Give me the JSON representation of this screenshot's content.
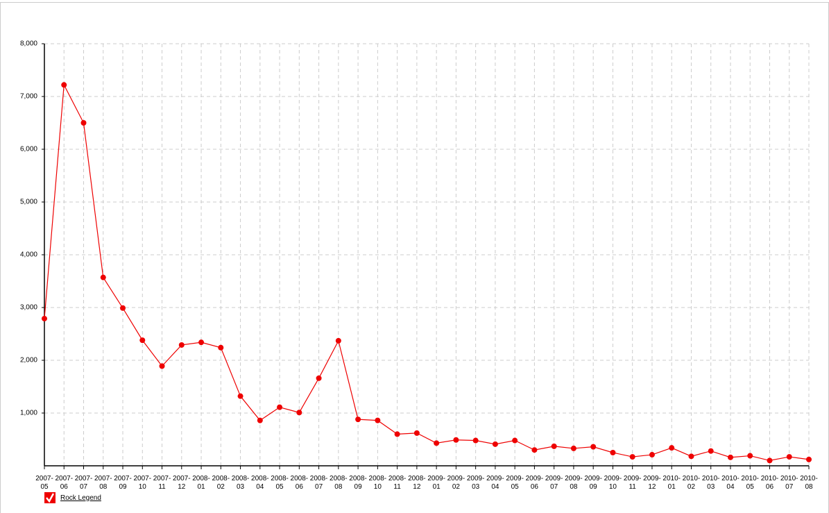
{
  "chart_data": {
    "type": "line",
    "categories": [
      "2007-05",
      "2007-06",
      "2007-07",
      "2007-08",
      "2007-09",
      "2007-10",
      "2007-11",
      "2007-12",
      "2008-01",
      "2008-02",
      "2008-03",
      "2008-04",
      "2008-05",
      "2008-06",
      "2008-07",
      "2008-08",
      "2008-09",
      "2008-10",
      "2008-11",
      "2008-12",
      "2009-01",
      "2009-02",
      "2009-03",
      "2009-04",
      "2009-05",
      "2009-06",
      "2009-07",
      "2009-08",
      "2009-09",
      "2009-10",
      "2009-11",
      "2009-12",
      "2010-01",
      "2010-02",
      "2010-03",
      "2010-04",
      "2010-05",
      "2010-06",
      "2010-07",
      "2010-08"
    ],
    "series": [
      {
        "name": "Rock Legend",
        "color": "#ee0000",
        "values": [
          2790,
          7220,
          6500,
          3570,
          2990,
          2380,
          1890,
          2290,
          2340,
          2240,
          1320,
          860,
          1110,
          1010,
          1660,
          2370,
          880,
          860,
          600,
          620,
          430,
          490,
          480,
          410,
          480,
          300,
          370,
          330,
          360,
          250,
          170,
          210,
          340,
          180,
          280,
          160,
          190,
          100,
          170,
          120
        ]
      }
    ],
    "ylim": [
      0,
      8000
    ],
    "yticks": [
      {
        "value": 1000,
        "label": "1,000"
      },
      {
        "value": 2000,
        "label": "2,000"
      },
      {
        "value": 3000,
        "label": "3,000"
      },
      {
        "value": 4000,
        "label": "4,000"
      },
      {
        "value": 5000,
        "label": "5,000"
      },
      {
        "value": 6000,
        "label": "6,000"
      },
      {
        "value": 7000,
        "label": "7,000"
      },
      {
        "value": 8000,
        "label": "8,000"
      }
    ],
    "grid": true
  }
}
